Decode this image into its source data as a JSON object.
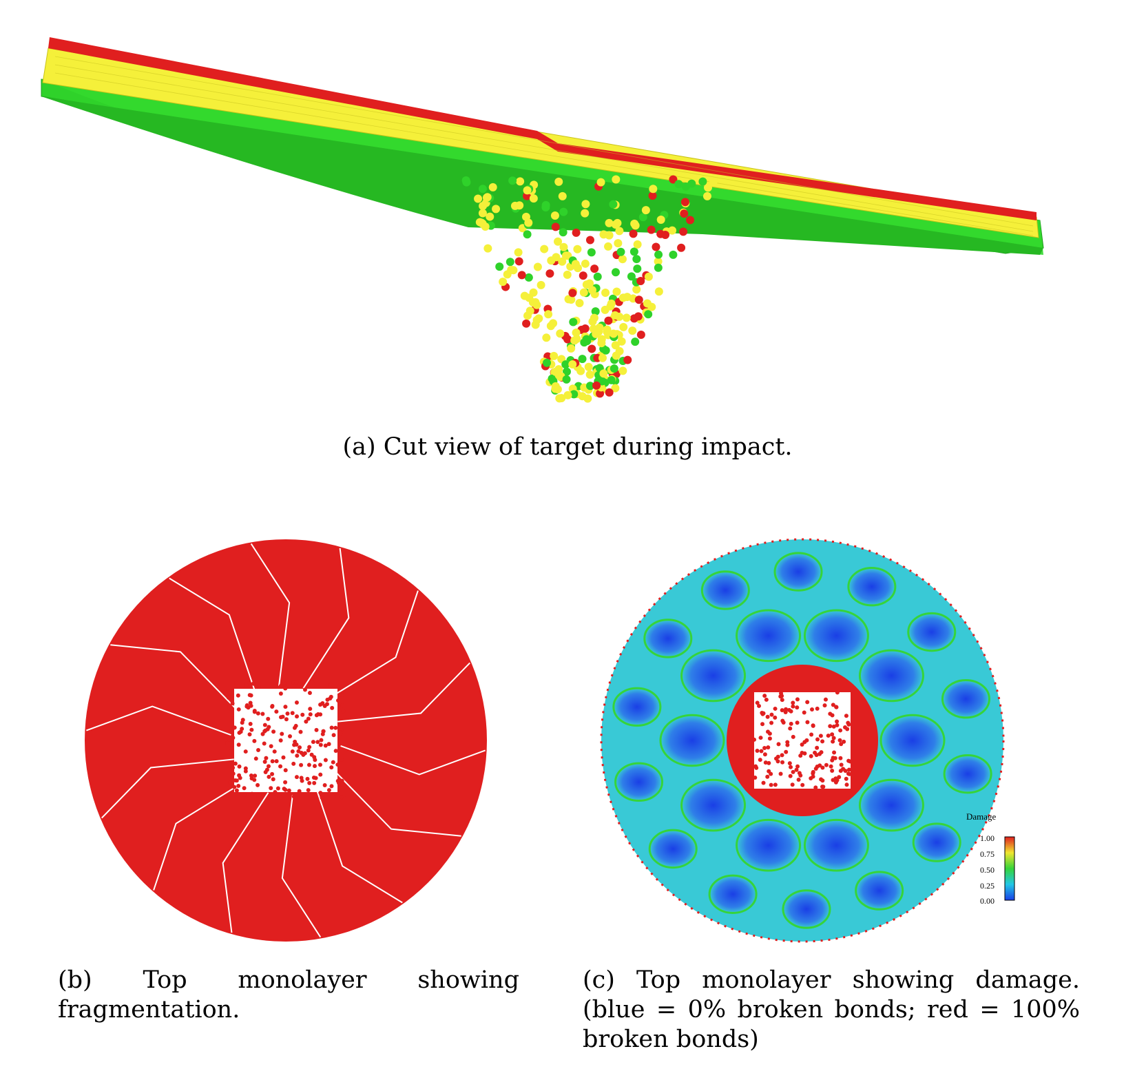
{
  "figure": {
    "panel_a": {
      "caption": "(a) Cut view of target during impact."
    },
    "panel_b": {
      "caption": "(b) Top monolayer showing fragmentation."
    },
    "panel_c": {
      "caption": "(c) Top monolayer showing damage. (blue = 0% broken bonds; red = 100% broken bonds)",
      "colorbar": {
        "title": "Damage",
        "ticks": [
          "1.00",
          "0.75",
          "0.50",
          "0.25",
          "0.00"
        ]
      }
    }
  },
  "colors": {
    "red": "#e01f1f",
    "yellow": "#f5f03a",
    "green": "#2fd22a",
    "blue": "#1a3fe6",
    "cyan": "#39c9d6"
  }
}
